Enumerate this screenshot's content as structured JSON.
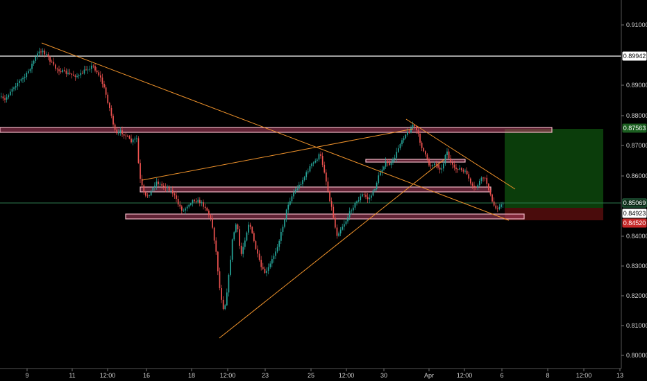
{
  "chart_data": {
    "type": "candlestick",
    "title": "",
    "xlabel": "",
    "ylabel": "",
    "ylim": [
      0.7975,
      0.9125
    ],
    "y_ticks": [
      "0.91000",
      "0.89000",
      "0.88000",
      "0.87000",
      "0.86000",
      "0.84000",
      "0.83000",
      "0.82000",
      "0.81000",
      "0.80000"
    ],
    "x_ticks": [
      "9",
      "11",
      "12:00",
      "16",
      "18",
      "12:00",
      "23",
      "25",
      "12:00",
      "30",
      "Apr",
      "12:00",
      "6",
      "8",
      "12:00",
      "13"
    ],
    "price_levels": [
      {
        "label": "0.89942",
        "value": 0.89942,
        "style": "line-white"
      },
      {
        "label": "0.87563",
        "value": 0.87563,
        "style": "badge-green"
      },
      {
        "label": "0.85069",
        "value": 0.85069,
        "style": "badge-current"
      },
      {
        "label": "0.84923",
        "value": 0.84923,
        "style": "badge-white"
      },
      {
        "label": "0.84520",
        "value": 0.8452,
        "style": "badge-red"
      }
    ],
    "zones": [
      {
        "name": "resistance-upper",
        "y_top": 0.8758,
        "y_bottom": 0.8742
      },
      {
        "name": "resistance-right",
        "y_top": 0.8648,
        "y_bottom": 0.8641
      },
      {
        "name": "middle-zone",
        "y_top": 0.8558,
        "y_bottom": 0.8541
      },
      {
        "name": "support-lower",
        "y_top": 0.8462,
        "y_bottom": 0.8447
      }
    ],
    "position": {
      "entry": 0.85069,
      "target": 0.87563,
      "stop": 0.8452
    },
    "colors": {
      "up": "#26a69a",
      "down": "#ef5350",
      "trendline": "#f0932b",
      "zone_fill": "#b04060",
      "zone_stroke": "#f2b8c6",
      "profit": "#0b3d0b",
      "loss": "#4a0c0c"
    }
  }
}
